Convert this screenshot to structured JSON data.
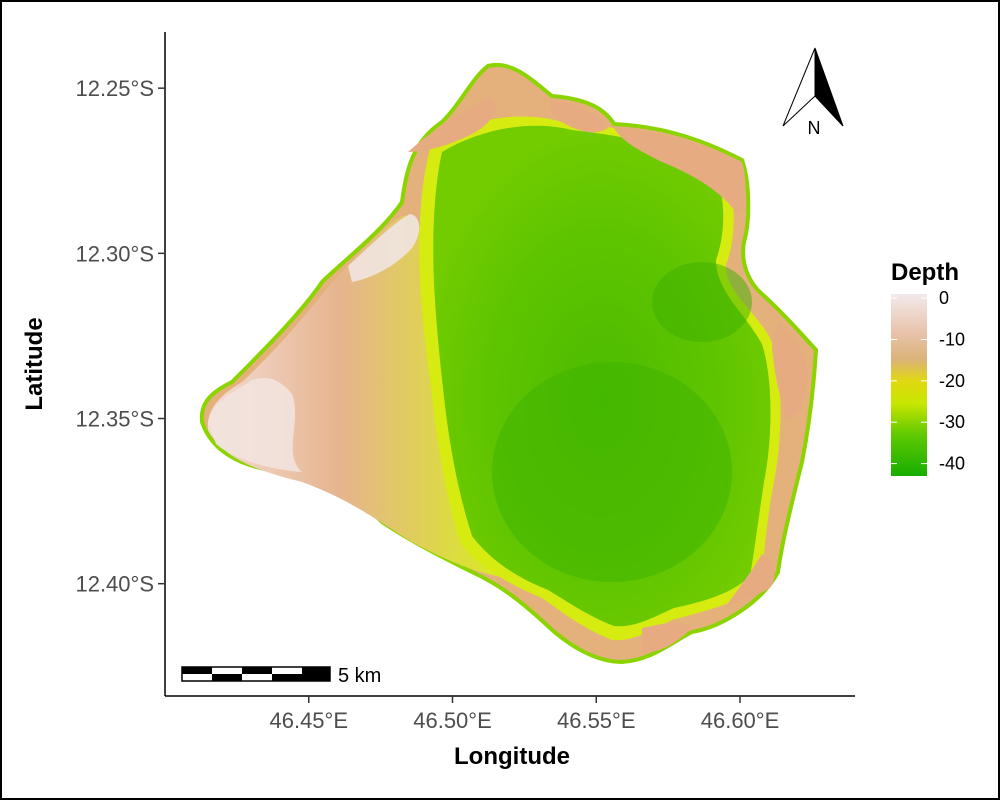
{
  "map": {
    "x_axis_title": "Longitude",
    "y_axis_title": "Latitude",
    "x_ticks": [
      {
        "value": 46.45,
        "label": "46.45°E"
      },
      {
        "value": 46.5,
        "label": "46.50°E"
      },
      {
        "value": 46.55,
        "label": "46.55°E"
      },
      {
        "value": 46.6,
        "label": "46.60°E"
      }
    ],
    "y_ticks": [
      {
        "value": -12.25,
        "label": "12.25°S"
      },
      {
        "value": -12.3,
        "label": "12.30°S"
      },
      {
        "value": -12.35,
        "label": "12.35°S"
      },
      {
        "value": -12.4,
        "label": "12.40°S"
      }
    ],
    "x_range": [
      46.4,
      46.64
    ],
    "y_range": [
      -12.434,
      -12.233
    ],
    "legend": {
      "title": "Depth",
      "labels": [
        {
          "value": 0,
          "label": "0"
        },
        {
          "value": -10,
          "label": "-10"
        },
        {
          "value": -20,
          "label": "-20"
        },
        {
          "value": -30,
          "label": "-30"
        },
        {
          "value": -40,
          "label": "-40"
        }
      ],
      "range": [
        -43,
        1
      ],
      "colors": [
        "#f2e9ea",
        "#e8c2a8",
        "#dab378",
        "#e0d810",
        "#c8e600",
        "#5cc800",
        "#18ae00"
      ],
      "placement": "right"
    },
    "scale_bar": {
      "label": "5 km"
    },
    "north_arrow": {
      "label": "N",
      "icon": "north-arrow-icon"
    },
    "colors": {
      "lagoon_deep": "#3cb300",
      "lagoon": "#5ec400",
      "reef_flat": "#d8f000",
      "rim": "#e4b07c",
      "shallow": "#f0d8cc"
    }
  }
}
